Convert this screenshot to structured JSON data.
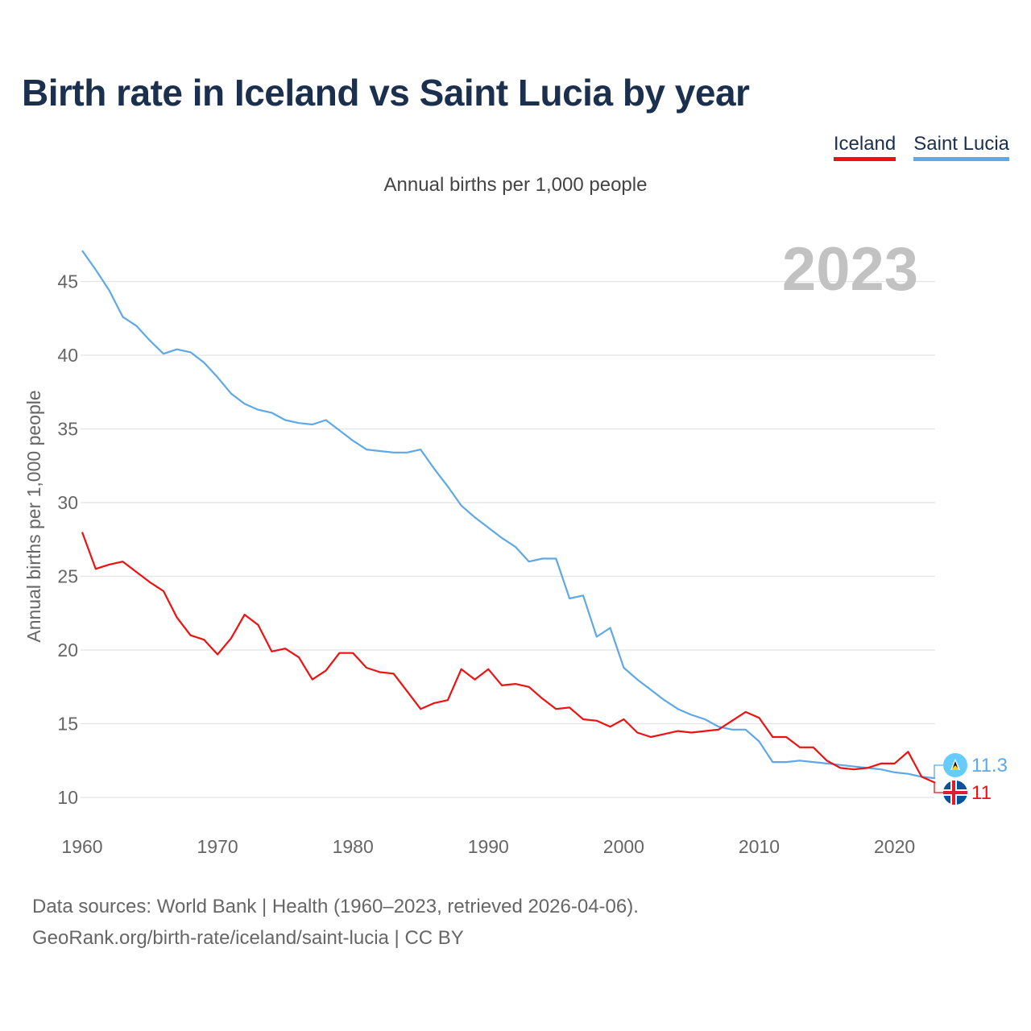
{
  "title": "Birth rate in Iceland vs Saint Lucia by year",
  "subtitle": "Annual births per 1,000 people",
  "legend": [
    {
      "label": "Iceland",
      "color": "#ee1111"
    },
    {
      "label": "Saint Lucia",
      "color": "#5fa8e8"
    }
  ],
  "footer": {
    "line1": "Data sources: World Bank | Health (1960–2023, retrieved 2026-04-06).",
    "line2": "GeoRank.org/birth-rate/iceland/saint-lucia | CC BY"
  },
  "chart_data": {
    "type": "line",
    "title": "Birth rate in Iceland vs Saint Lucia by year",
    "ylabel": "Annual births per 1,000 people",
    "xlabel": "",
    "year_label": "2023",
    "xlim": [
      1960,
      2023
    ],
    "ylim": [
      10,
      47
    ],
    "xticks": [
      1960,
      1970,
      1980,
      1990,
      2000,
      2010,
      2020
    ],
    "yticks": [
      10,
      15,
      20,
      25,
      30,
      35,
      40,
      45
    ],
    "grid": true,
    "legend_position": "top-right",
    "x": [
      1960,
      1961,
      1962,
      1963,
      1964,
      1965,
      1966,
      1967,
      1968,
      1969,
      1970,
      1971,
      1972,
      1973,
      1974,
      1975,
      1976,
      1977,
      1978,
      1979,
      1980,
      1981,
      1982,
      1983,
      1984,
      1985,
      1986,
      1987,
      1988,
      1989,
      1990,
      1991,
      1992,
      1993,
      1994,
      1995,
      1996,
      1997,
      1998,
      1999,
      2000,
      2001,
      2002,
      2003,
      2004,
      2005,
      2006,
      2007,
      2008,
      2009,
      2010,
      2011,
      2012,
      2013,
      2014,
      2015,
      2016,
      2017,
      2018,
      2019,
      2020,
      2021,
      2022,
      2023
    ],
    "series": [
      {
        "name": "Saint Lucia",
        "color": "#5fa8e8",
        "end_label": "11.3",
        "values": [
          47.1,
          45.8,
          44.4,
          42.6,
          42.0,
          41.0,
          40.1,
          40.4,
          40.2,
          39.5,
          38.5,
          37.4,
          36.7,
          36.3,
          36.1,
          35.6,
          35.4,
          35.3,
          35.6,
          34.9,
          34.2,
          33.6,
          33.5,
          33.4,
          33.4,
          33.6,
          32.3,
          31.1,
          29.8,
          29.0,
          28.3,
          27.6,
          27.0,
          26.0,
          26.2,
          26.2,
          23.5,
          23.7,
          20.9,
          21.5,
          18.8,
          18.0,
          17.3,
          16.6,
          16.0,
          15.6,
          15.3,
          14.8,
          14.6,
          14.6,
          13.8,
          12.4,
          12.4,
          12.5,
          12.4,
          12.3,
          12.2,
          12.1,
          12.0,
          11.9,
          11.7,
          11.6,
          11.4,
          11.3
        ]
      },
      {
        "name": "Iceland",
        "color": "#ee1111",
        "end_label": "11",
        "values": [
          28.0,
          25.5,
          25.8,
          26.0,
          25.3,
          24.6,
          24.0,
          22.2,
          21.0,
          20.7,
          19.7,
          20.8,
          22.4,
          21.7,
          19.9,
          20.1,
          19.5,
          18.0,
          18.6,
          19.8,
          19.8,
          18.8,
          18.5,
          18.4,
          17.2,
          16.0,
          16.4,
          16.6,
          18.7,
          18.0,
          18.7,
          17.6,
          17.7,
          17.5,
          16.7,
          16.0,
          16.1,
          15.3,
          15.2,
          14.8,
          15.3,
          14.4,
          14.1,
          14.3,
          14.5,
          14.4,
          14.5,
          14.6,
          15.2,
          15.8,
          15.4,
          14.1,
          14.1,
          13.4,
          13.4,
          12.5,
          12.0,
          11.9,
          12.0,
          12.3,
          12.3,
          13.1,
          11.4,
          11.0
        ]
      }
    ]
  }
}
